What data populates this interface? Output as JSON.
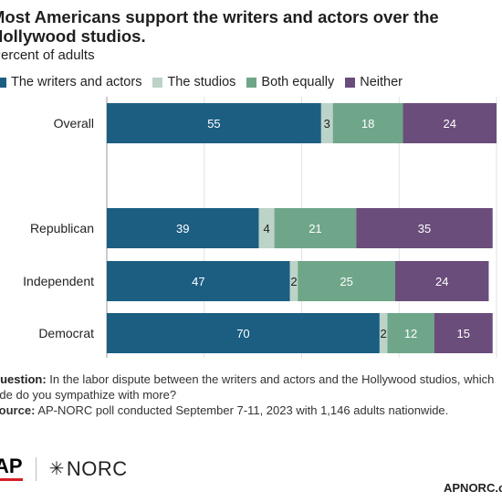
{
  "header": {
    "title": "Most Americans support the writers and actors over the Hollywood studios.",
    "subtitle": "Percent of adults"
  },
  "legend": [
    {
      "label": "The writers and actors",
      "color": "#1b5e82"
    },
    {
      "label": "The studios",
      "color": "#bcd3c8"
    },
    {
      "label": "Both equally",
      "color": "#6fa68a"
    },
    {
      "label": "Neither",
      "color": "#6a4d7a"
    }
  ],
  "chart_data": {
    "type": "bar",
    "orientation": "horizontal",
    "stacked": true,
    "categories": [
      "Overall",
      "Republican",
      "Independent",
      "Democrat"
    ],
    "series": [
      {
        "name": "The writers and actors",
        "values": [
          55,
          39,
          47,
          70
        ],
        "color": "#1b5e82",
        "label_color": "#ffffff"
      },
      {
        "name": "The studios",
        "values": [
          3,
          4,
          2,
          2
        ],
        "color": "#bcd3c8",
        "label_color": "#222222"
      },
      {
        "name": "Both equally",
        "values": [
          18,
          21,
          25,
          12
        ],
        "color": "#6fa68a",
        "label_color": "#ffffff"
      },
      {
        "name": "Neither",
        "values": [
          24,
          35,
          24,
          15
        ],
        "color": "#6a4d7a",
        "label_color": "#ffffff"
      }
    ],
    "xlim": [
      0,
      100
    ],
    "xticks": [
      0,
      25,
      50,
      75,
      100
    ],
    "grid": true
  },
  "footer": {
    "question_label": "Question:",
    "question_text": "In the labor dispute between the writers and actors and the Hollywood studios, which side do you sympathize with more?",
    "source_label": "Source:",
    "source_text": "AP-NORC poll conducted September 7-11, 2023 with 1,146 adults nationwide.",
    "ap_logo": "AP",
    "norc_logo": "NORC",
    "norc_mark": "✳",
    "site": "APNORC.org"
  }
}
